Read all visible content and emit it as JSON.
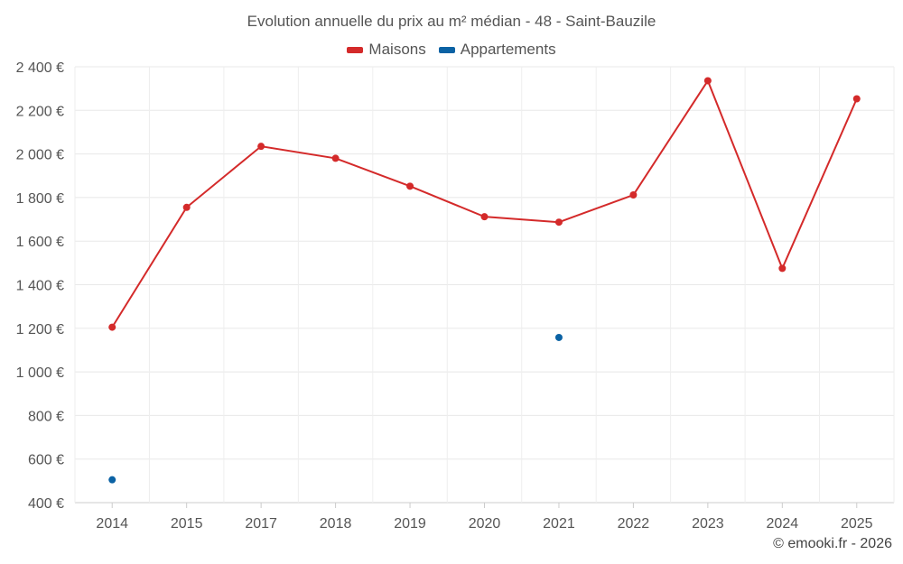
{
  "chart_data": {
    "type": "line",
    "title": "Evolution annuelle du prix au m² médian - 48 - Saint-Bauzile",
    "categories": [
      "2014",
      "2015",
      "2017",
      "2018",
      "2019",
      "2020",
      "2021",
      "2022",
      "2023",
      "2024",
      "2025"
    ],
    "ylim": [
      400,
      2400
    ],
    "yticks": [
      400,
      600,
      800,
      1000,
      1200,
      1400,
      1600,
      1800,
      2000,
      2200,
      2400
    ],
    "ytick_labels": [
      "400 €",
      "600 €",
      "800 €",
      "1 000 €",
      "1 200 €",
      "1 400 €",
      "1 600 €",
      "1 800 €",
      "2 000 €",
      "2 200 €",
      "2 400 €"
    ],
    "grid": true,
    "legend_position": "top-center",
    "series": [
      {
        "name": "Maisons",
        "color": "#d42a2a",
        "values": [
          1205,
          1755,
          2035,
          1980,
          1852,
          1712,
          1687,
          1812,
          2336,
          1475,
          2253
        ]
      },
      {
        "name": "Appartements",
        "color": "#0b62a4",
        "values": [
          505,
          null,
          null,
          null,
          null,
          null,
          1158,
          null,
          null,
          null,
          null
        ]
      }
    ]
  },
  "credit": "© emooki.fr - 2026"
}
